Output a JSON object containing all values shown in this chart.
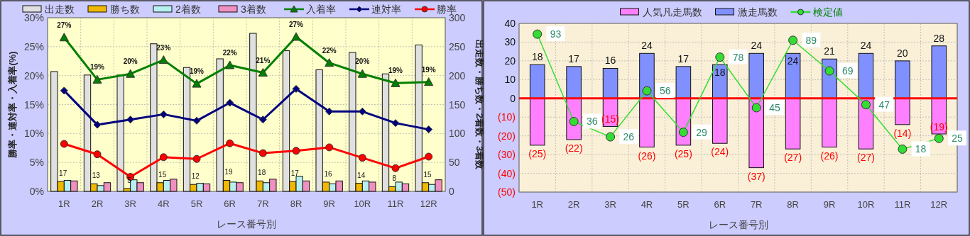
{
  "chart_data": [
    {
      "type": "bar",
      "xlabel": "レース番号別",
      "ylabel": "勝率・連対率・入着率(%)",
      "y2label": "出走数・勝ち数・2着数・3着数",
      "legend": "top",
      "grid": true,
      "categories": [
        "1R",
        "2R",
        "3R",
        "4R",
        "5R",
        "6R",
        "7R",
        "8R",
        "9R",
        "10R",
        "11R",
        "12R"
      ],
      "ylim": [
        0,
        30
      ],
      "yticks": [
        {
          "value": 0,
          "label": "0%"
        },
        {
          "value": 5,
          "label": "5%"
        },
        {
          "value": 10,
          "label": "10%"
        },
        {
          "value": 15,
          "label": "15%"
        },
        {
          "value": 20,
          "label": "20%"
        },
        {
          "value": 25,
          "label": "25%"
        },
        {
          "value": 30,
          "label": "30%"
        }
      ],
      "y2lim": [
        0,
        300
      ],
      "y2ticks": [
        0,
        50,
        100,
        150,
        200,
        250,
        300
      ],
      "series": [
        {
          "name": "出走数",
          "axis": "y2",
          "color": "#e0e0e0",
          "values": [
            207,
            201,
            201,
            255,
            214,
            229,
            273,
            243,
            210,
            240,
            203,
            253
          ]
        },
        {
          "name": "勝ち数",
          "axis": "y2",
          "color": "#f0b800",
          "values": [
            17,
            13,
            5,
            15,
            12,
            19,
            18,
            17,
            16,
            14,
            8,
            15
          ],
          "value_labels": [
            "17",
            "13",
            "5",
            "15",
            "12",
            "19",
            "18",
            "17",
            "16",
            "14",
            "8",
            "15"
          ]
        },
        {
          "name": "2着数",
          "axis": "y2",
          "color": "#b8f0f0",
          "values": [
            19,
            10,
            20,
            19,
            14,
            16,
            15,
            26,
            13,
            18,
            16,
            12
          ]
        },
        {
          "name": "3着数",
          "axis": "y2",
          "color": "#f090c0",
          "values": [
            18,
            15,
            15,
            21,
            13,
            15,
            21,
            18,
            18,
            16,
            13,
            20
          ]
        },
        {
          "name": "入着率",
          "type": "line",
          "axis": "y",
          "color": "#008000",
          "marker": "triangle",
          "values": [
            26.6,
            19.3,
            20.3,
            22.7,
            18.6,
            21.8,
            20.5,
            26.7,
            22.2,
            20.3,
            18.7,
            18.9
          ],
          "value_labels": [
            "27%",
            "19%",
            "20%",
            "23%",
            "19%",
            "22%",
            "21%",
            "27%",
            "22%",
            "20%",
            "19%",
            "19%"
          ]
        },
        {
          "name": "連対率",
          "type": "line",
          "axis": "y",
          "color": "#000080",
          "marker": "diamond",
          "values": [
            17.4,
            11.5,
            12.4,
            13.3,
            12.2,
            15.3,
            12.4,
            17.7,
            13.8,
            13.8,
            11.8,
            10.7
          ]
        },
        {
          "name": "勝率",
          "type": "line",
          "axis": "y",
          "color": "#ff0000",
          "marker": "circle",
          "values": [
            8.2,
            6.4,
            2.5,
            5.9,
            5.6,
            8.3,
            6.6,
            7.0,
            7.6,
            5.8,
            4.0,
            6.0
          ]
        }
      ]
    },
    {
      "type": "bar",
      "xlabel": "レース番号別",
      "legend": "top",
      "grid": true,
      "stacked": true,
      "categories": [
        "1R",
        "2R",
        "3R",
        "4R",
        "5R",
        "6R",
        "7R",
        "8R",
        "9R",
        "10R",
        "11R",
        "12R"
      ],
      "ylim": [
        -50,
        40
      ],
      "yticks": [
        40,
        30,
        20,
        10,
        0,
        {
          "value": -10,
          "label": "(10)"
        },
        {
          "value": -20,
          "label": "(20)"
        },
        {
          "value": -30,
          "label": "(30)"
        },
        {
          "value": -40,
          "label": "(40)"
        },
        {
          "value": -50,
          "label": "(50)"
        }
      ],
      "y2lim": [
        -10,
        100
      ],
      "tick_labels": "xy",
      "ref_lines": [
        {
          "axis": "y",
          "value": 0,
          "color": "#ff0000"
        }
      ],
      "series": [
        {
          "name": "人気凡走馬数",
          "color": "#ff80ff",
          "values": [
            -25,
            -22,
            -15,
            -26,
            -25,
            -24,
            -37,
            -27,
            -26,
            -27,
            -14,
            -19
          ],
          "value_labels": [
            "(25)",
            "(22)",
            "(15)",
            "(26)",
            "(25)",
            "(24)",
            "(37)",
            "(27)",
            "(26)",
            "(27)",
            "(14)",
            "(19)"
          ]
        },
        {
          "name": "激走馬数",
          "color": "#8090ff",
          "values": [
            18,
            17,
            16,
            24,
            17,
            18,
            24,
            24,
            21,
            24,
            20,
            28
          ],
          "value_labels": [
            "18",
            "17",
            "16",
            "24",
            "17",
            "18",
            "24",
            "24",
            "21",
            "24",
            "20",
            "28"
          ]
        },
        {
          "name": "検定値",
          "type": "line",
          "axis": "y2",
          "color": "#33dd33",
          "marker": "circle",
          "values": [
            93,
            36,
            26,
            56,
            29,
            78,
            45,
            89,
            69,
            47,
            18,
            25
          ],
          "value_labels": [
            "93",
            "36",
            "26",
            "56",
            "29",
            "78",
            "45",
            "89",
            "69",
            "47",
            "18",
            "25"
          ]
        }
      ]
    }
  ]
}
